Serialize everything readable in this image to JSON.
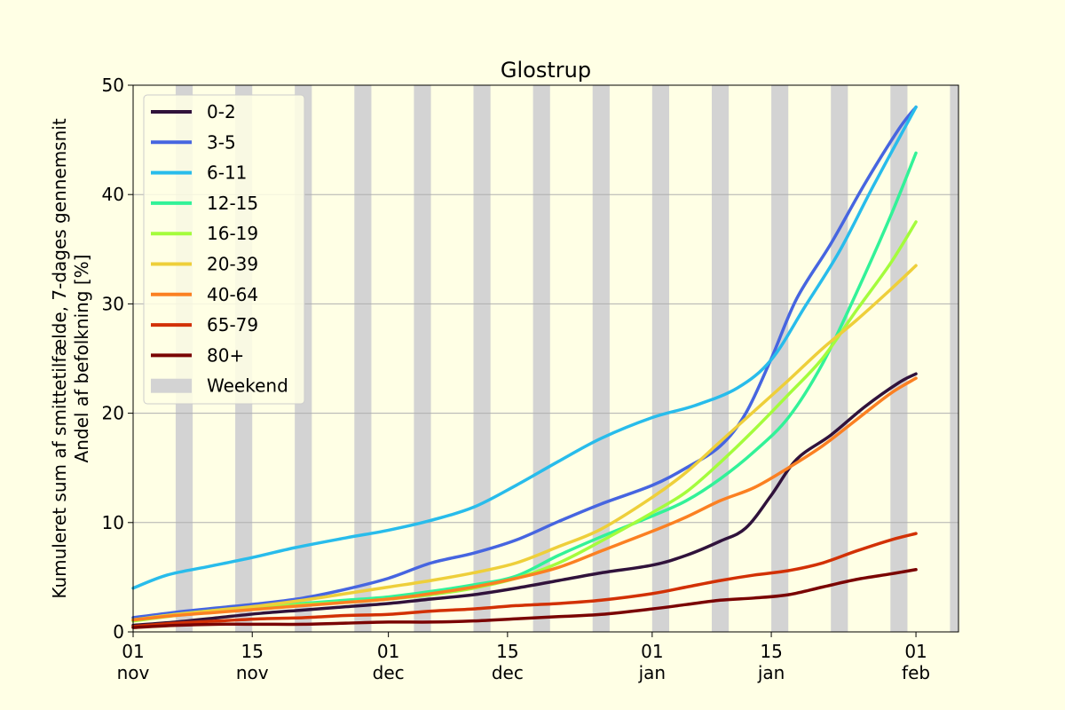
{
  "chart_data": {
    "type": "line",
    "title": "Glostrup",
    "ylabel_lines": [
      "Kumuleret sum af smittetilfælde, 7-dages gennemsnit",
      "Andel af befolkning [%]"
    ],
    "xlabel": "",
    "ylim": [
      0,
      50
    ],
    "xlim": [
      "2021-11-01",
      "2022-02-06"
    ],
    "yticks": [
      0,
      10,
      20,
      30,
      40,
      50
    ],
    "xticks": [
      {
        "date": "2021-11-01",
        "label": [
          "01",
          "nov"
        ]
      },
      {
        "date": "2021-11-15",
        "label": [
          "15",
          "nov"
        ]
      },
      {
        "date": "2021-12-01",
        "label": [
          "01",
          "dec"
        ]
      },
      {
        "date": "2021-12-15",
        "label": [
          "15",
          "dec"
        ]
      },
      {
        "date": "2022-01-01",
        "label": [
          "01",
          "jan"
        ]
      },
      {
        "date": "2022-01-15",
        "label": [
          "15",
          "jan"
        ]
      },
      {
        "date": "2022-02-01",
        "label": [
          "01",
          "feb"
        ]
      }
    ],
    "grid": "horizontal",
    "legend_position": "upper-left",
    "weekend_label": "Weekend",
    "weekend_color": "#d3d3d3",
    "weekends": [
      [
        "2021-11-06",
        "2021-11-08"
      ],
      [
        "2021-11-13",
        "2021-11-15"
      ],
      [
        "2021-11-20",
        "2021-11-22"
      ],
      [
        "2021-11-27",
        "2021-11-29"
      ],
      [
        "2021-12-04",
        "2021-12-06"
      ],
      [
        "2021-12-11",
        "2021-12-13"
      ],
      [
        "2021-12-18",
        "2021-12-20"
      ],
      [
        "2021-12-25",
        "2021-12-27"
      ],
      [
        "2022-01-01",
        "2022-01-03"
      ],
      [
        "2022-01-08",
        "2022-01-10"
      ],
      [
        "2022-01-15",
        "2022-01-17"
      ],
      [
        "2022-01-22",
        "2022-01-24"
      ],
      [
        "2022-01-29",
        "2022-01-31"
      ],
      [
        "2022-02-05",
        "2022-02-07"
      ]
    ],
    "series": [
      {
        "name": "0-2",
        "color": "#30123b",
        "points": [
          [
            "2021-11-01",
            0.6
          ],
          [
            "2021-11-06",
            0.9
          ],
          [
            "2021-11-11",
            1.3
          ],
          [
            "2021-11-16",
            1.7
          ],
          [
            "2021-11-21",
            2.0
          ],
          [
            "2021-11-26",
            2.3
          ],
          [
            "2021-12-01",
            2.6
          ],
          [
            "2021-12-06",
            3.0
          ],
          [
            "2021-12-11",
            3.4
          ],
          [
            "2021-12-16",
            4.0
          ],
          [
            "2021-12-21",
            4.7
          ],
          [
            "2021-12-26",
            5.4
          ],
          [
            "2022-01-01",
            6.1
          ],
          [
            "2022-01-05",
            7.0
          ],
          [
            "2022-01-09",
            8.3
          ],
          [
            "2022-01-12",
            9.5
          ],
          [
            "2022-01-15",
            12.5
          ],
          [
            "2022-01-18",
            15.8
          ],
          [
            "2022-01-22",
            18.0
          ],
          [
            "2022-01-26",
            20.6
          ],
          [
            "2022-01-30",
            22.8
          ],
          [
            "2022-02-01",
            23.6
          ]
        ]
      },
      {
        "name": "3-5",
        "color": "#4665e0",
        "points": [
          [
            "2021-11-01",
            1.3
          ],
          [
            "2021-11-06",
            1.8
          ],
          [
            "2021-11-11",
            2.2
          ],
          [
            "2021-11-16",
            2.6
          ],
          [
            "2021-11-21",
            3.1
          ],
          [
            "2021-11-26",
            3.9
          ],
          [
            "2021-12-01",
            4.9
          ],
          [
            "2021-12-06",
            6.3
          ],
          [
            "2021-12-11",
            7.2
          ],
          [
            "2021-12-16",
            8.4
          ],
          [
            "2021-12-21",
            10.1
          ],
          [
            "2021-12-26",
            11.7
          ],
          [
            "2022-01-01",
            13.4
          ],
          [
            "2022-01-05",
            15.0
          ],
          [
            "2022-01-09",
            17.0
          ],
          [
            "2022-01-12",
            20.0
          ],
          [
            "2022-01-15",
            25.0
          ],
          [
            "2022-01-18",
            30.5
          ],
          [
            "2022-01-22",
            35.5
          ],
          [
            "2022-01-26",
            41.0
          ],
          [
            "2022-01-30",
            46.0
          ],
          [
            "2022-02-01",
            48.0
          ]
        ]
      },
      {
        "name": "6-11",
        "color": "#28bceb",
        "points": [
          [
            "2021-11-01",
            4.0
          ],
          [
            "2021-11-05",
            5.2
          ],
          [
            "2021-11-10",
            6.0
          ],
          [
            "2021-11-15",
            6.8
          ],
          [
            "2021-11-20",
            7.7
          ],
          [
            "2021-11-26",
            8.6
          ],
          [
            "2021-12-01",
            9.3
          ],
          [
            "2021-12-06",
            10.2
          ],
          [
            "2021-12-11",
            11.4
          ],
          [
            "2021-12-16",
            13.4
          ],
          [
            "2021-12-21",
            15.6
          ],
          [
            "2021-12-26",
            17.7
          ],
          [
            "2022-01-01",
            19.6
          ],
          [
            "2022-01-06",
            20.7
          ],
          [
            "2022-01-11",
            22.3
          ],
          [
            "2022-01-15",
            24.9
          ],
          [
            "2022-01-19",
            29.8
          ],
          [
            "2022-01-23",
            34.8
          ],
          [
            "2022-01-27",
            40.8
          ],
          [
            "2022-02-01",
            48.0
          ]
        ]
      },
      {
        "name": "12-15",
        "color": "#32f298",
        "points": [
          [
            "2021-11-01",
            1.1
          ],
          [
            "2021-11-06",
            1.6
          ],
          [
            "2021-11-11",
            2.0
          ],
          [
            "2021-11-16",
            2.3
          ],
          [
            "2021-11-21",
            2.6
          ],
          [
            "2021-11-26",
            2.9
          ],
          [
            "2021-12-01",
            3.2
          ],
          [
            "2021-12-06",
            3.7
          ],
          [
            "2021-12-11",
            4.3
          ],
          [
            "2021-12-16",
            5.1
          ],
          [
            "2021-12-21",
            7.0
          ],
          [
            "2021-12-26",
            8.7
          ],
          [
            "2022-01-01",
            10.6
          ],
          [
            "2022-01-05",
            12.0
          ],
          [
            "2022-01-09",
            14.0
          ],
          [
            "2022-01-13",
            16.5
          ],
          [
            "2022-01-17",
            19.6
          ],
          [
            "2022-01-21",
            24.5
          ],
          [
            "2022-01-25",
            31.0
          ],
          [
            "2022-01-29",
            38.0
          ],
          [
            "2022-02-01",
            43.8
          ]
        ]
      },
      {
        "name": "16-19",
        "color": "#a4fc3c",
        "points": [
          [
            "2021-11-01",
            1.0
          ],
          [
            "2021-11-06",
            1.5
          ],
          [
            "2021-11-11",
            1.9
          ],
          [
            "2021-11-16",
            2.2
          ],
          [
            "2021-11-21",
            2.5
          ],
          [
            "2021-11-26",
            2.7
          ],
          [
            "2021-12-01",
            3.0
          ],
          [
            "2021-12-06",
            3.4
          ],
          [
            "2021-12-11",
            4.0
          ],
          [
            "2021-12-16",
            4.9
          ],
          [
            "2021-12-21",
            6.3
          ],
          [
            "2021-12-26",
            8.3
          ],
          [
            "2022-01-01",
            10.9
          ],
          [
            "2022-01-05",
            12.8
          ],
          [
            "2022-01-09",
            15.5
          ],
          [
            "2022-01-13",
            18.5
          ],
          [
            "2022-01-17",
            21.7
          ],
          [
            "2022-01-21",
            25.0
          ],
          [
            "2022-01-25",
            29.4
          ],
          [
            "2022-01-29",
            33.7
          ],
          [
            "2022-02-01",
            37.5
          ]
        ]
      },
      {
        "name": "20-39",
        "color": "#eecf3a",
        "points": [
          [
            "2021-11-01",
            1.1
          ],
          [
            "2021-11-06",
            1.6
          ],
          [
            "2021-11-11",
            2.0
          ],
          [
            "2021-11-16",
            2.4
          ],
          [
            "2021-11-21",
            2.9
          ],
          [
            "2021-11-26",
            3.5
          ],
          [
            "2021-12-01",
            4.1
          ],
          [
            "2021-12-06",
            4.7
          ],
          [
            "2021-12-11",
            5.4
          ],
          [
            "2021-12-16",
            6.3
          ],
          [
            "2021-12-21",
            7.8
          ],
          [
            "2021-12-26",
            9.4
          ],
          [
            "2022-01-01",
            12.3
          ],
          [
            "2022-01-05",
            14.6
          ],
          [
            "2022-01-09",
            17.4
          ],
          [
            "2022-01-13",
            20.2
          ],
          [
            "2022-01-17",
            23.0
          ],
          [
            "2022-01-21",
            25.9
          ],
          [
            "2022-01-25",
            28.5
          ],
          [
            "2022-01-29",
            31.3
          ],
          [
            "2022-02-01",
            33.5
          ]
        ]
      },
      {
        "name": "40-64",
        "color": "#fb8022",
        "points": [
          [
            "2021-11-01",
            1.1
          ],
          [
            "2021-11-06",
            1.5
          ],
          [
            "2021-11-11",
            1.8
          ],
          [
            "2021-11-16",
            2.1
          ],
          [
            "2021-11-21",
            2.4
          ],
          [
            "2021-11-26",
            2.7
          ],
          [
            "2021-12-01",
            3.0
          ],
          [
            "2021-12-06",
            3.5
          ],
          [
            "2021-12-11",
            4.1
          ],
          [
            "2021-12-16",
            4.9
          ],
          [
            "2021-12-21",
            5.9
          ],
          [
            "2021-12-26",
            7.4
          ],
          [
            "2022-01-01",
            9.2
          ],
          [
            "2022-01-05",
            10.5
          ],
          [
            "2022-01-09",
            12.0
          ],
          [
            "2022-01-13",
            13.2
          ],
          [
            "2022-01-17",
            15.0
          ],
          [
            "2022-01-21",
            17.0
          ],
          [
            "2022-01-25",
            19.4
          ],
          [
            "2022-01-29",
            21.8
          ],
          [
            "2022-02-01",
            23.2
          ]
        ]
      },
      {
        "name": "65-79",
        "color": "#d23105",
        "points": [
          [
            "2021-11-01",
            0.5
          ],
          [
            "2021-11-06",
            0.8
          ],
          [
            "2021-11-11",
            1.0
          ],
          [
            "2021-11-16",
            1.2
          ],
          [
            "2021-11-21",
            1.3
          ],
          [
            "2021-11-26",
            1.5
          ],
          [
            "2021-12-01",
            1.6
          ],
          [
            "2021-12-06",
            1.9
          ],
          [
            "2021-12-11",
            2.1
          ],
          [
            "2021-12-16",
            2.4
          ],
          [
            "2021-12-21",
            2.6
          ],
          [
            "2021-12-26",
            2.9
          ],
          [
            "2022-01-01",
            3.5
          ],
          [
            "2022-01-05",
            4.1
          ],
          [
            "2022-01-09",
            4.7
          ],
          [
            "2022-01-13",
            5.2
          ],
          [
            "2022-01-17",
            5.6
          ],
          [
            "2022-01-21",
            6.3
          ],
          [
            "2022-01-25",
            7.4
          ],
          [
            "2022-01-29",
            8.4
          ],
          [
            "2022-02-01",
            9.0
          ]
        ]
      },
      {
        "name": "80+",
        "color": "#7a0403",
        "points": [
          [
            "2021-11-01",
            0.4
          ],
          [
            "2021-11-06",
            0.6
          ],
          [
            "2021-11-11",
            0.7
          ],
          [
            "2021-11-16",
            0.7
          ],
          [
            "2021-11-21",
            0.7
          ],
          [
            "2021-11-26",
            0.8
          ],
          [
            "2021-12-01",
            0.9
          ],
          [
            "2021-12-06",
            0.9
          ],
          [
            "2021-12-11",
            1.0
          ],
          [
            "2021-12-16",
            1.2
          ],
          [
            "2021-12-21",
            1.4
          ],
          [
            "2021-12-26",
            1.6
          ],
          [
            "2022-01-01",
            2.1
          ],
          [
            "2022-01-05",
            2.5
          ],
          [
            "2022-01-09",
            2.9
          ],
          [
            "2022-01-13",
            3.1
          ],
          [
            "2022-01-17",
            3.4
          ],
          [
            "2022-01-21",
            4.1
          ],
          [
            "2022-01-25",
            4.8
          ],
          [
            "2022-01-29",
            5.3
          ],
          [
            "2022-02-01",
            5.7
          ]
        ]
      }
    ]
  }
}
